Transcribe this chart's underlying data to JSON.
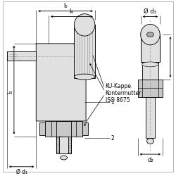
{
  "bg_color": "#ffffff",
  "line_color": "#000000",
  "gray_fill": "#c8c8c8",
  "light_gray": "#e0e0e0",
  "labels": {
    "l5": "l₅",
    "l4": "l₄",
    "l3": "l₃",
    "d1": "Ø d₁",
    "d2": "d₂",
    "d3": "Ø d₃",
    "ku_kappe": "KU-Kappe",
    "kontermutter": "Kontermutter",
    "iso": "ISO 8675",
    "dim1": "1",
    "dim2": "2"
  },
  "font_size": 5.5
}
